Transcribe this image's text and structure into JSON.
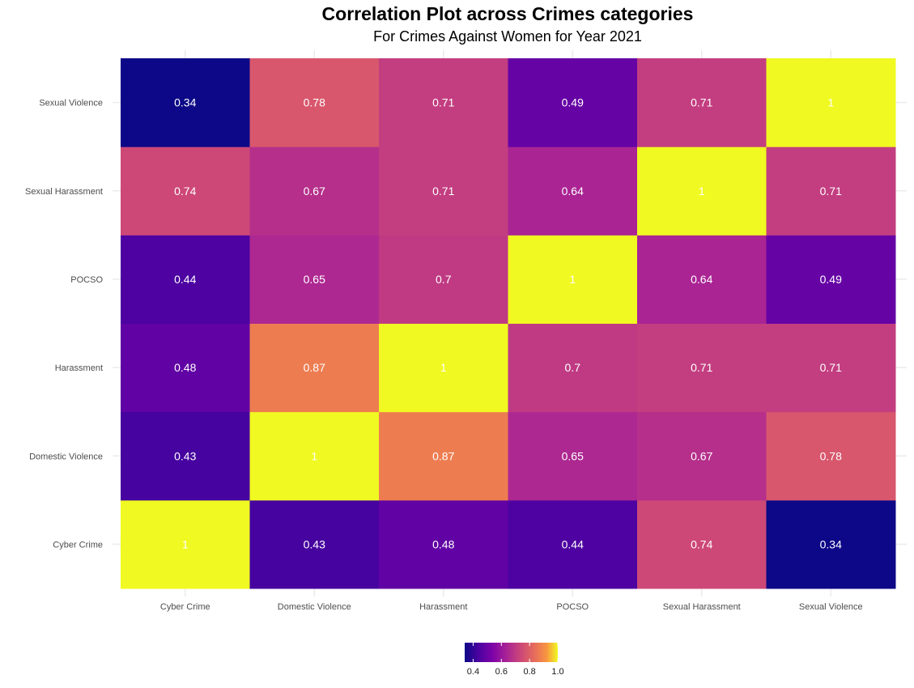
{
  "chart_data": {
    "type": "heatmap",
    "title": "Correlation Plot across Crimes categories",
    "subtitle": "For Crimes Against Women for Year 2021",
    "x_categories": [
      "Cyber Crime",
      "Domestic Violence",
      "Harassment",
      "POCSO",
      "Sexual Harassment",
      "Sexual Violence"
    ],
    "y_categories": [
      "Cyber Crime",
      "Domestic Violence",
      "Harassment",
      "POCSO",
      "Sexual Harassment",
      "Sexual Violence"
    ],
    "matrix": [
      [
        1,
        0.43,
        0.48,
        0.44,
        0.74,
        0.34
      ],
      [
        0.43,
        1,
        0.87,
        0.65,
        0.67,
        0.78
      ],
      [
        0.48,
        0.87,
        1,
        0.7,
        0.71,
        0.71
      ],
      [
        0.44,
        0.65,
        0.7,
        1,
        0.64,
        0.49
      ],
      [
        0.74,
        0.67,
        0.71,
        0.64,
        1,
        0.71
      ],
      [
        0.34,
        0.78,
        0.71,
        0.49,
        0.71,
        1
      ]
    ],
    "colorscale": "plasma",
    "color_range": [
      0.34,
      1.0
    ],
    "legend": {
      "position": "bottom",
      "ticks": [
        "0.4",
        "0.6",
        "0.8",
        "1.0"
      ],
      "tick_values": [
        0.4,
        0.6,
        0.8,
        1.0
      ]
    },
    "grid": true
  }
}
